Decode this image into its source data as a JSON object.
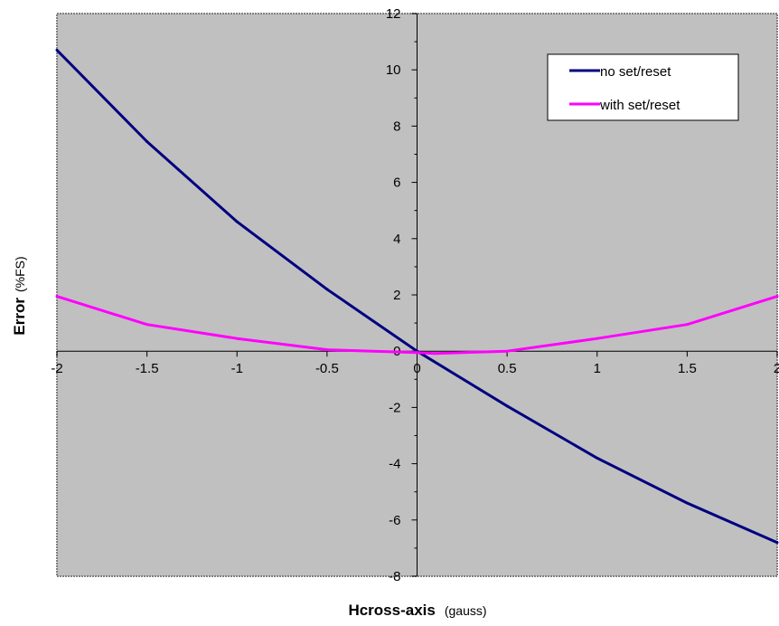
{
  "chart_data": {
    "type": "line",
    "x": [
      -2,
      -1.5,
      -1,
      -0.5,
      0,
      0.5,
      1,
      1.5,
      2
    ],
    "series": [
      {
        "name": "no set/reset",
        "color": "#000080",
        "x": [
          -2,
          -1.5,
          -1,
          -0.5,
          0,
          0.5,
          1,
          1.5,
          2
        ],
        "values": [
          10.7,
          7.45,
          4.6,
          2.2,
          0.0,
          -1.95,
          -3.8,
          -5.4,
          -6.8
        ]
      },
      {
        "name": "with set/reset",
        "color": "#ff00ff",
        "x": [
          -2,
          -1.5,
          -1,
          -0.5,
          0,
          0.1,
          0.5,
          1,
          1.5,
          2
        ],
        "values": [
          1.95,
          0.95,
          0.45,
          0.05,
          -0.05,
          -0.08,
          0.0,
          0.45,
          0.95,
          1.95
        ]
      }
    ],
    "xlim": [
      -2,
      2
    ],
    "ylim": [
      -8,
      12
    ],
    "xticks": [
      -2,
      -1.5,
      -1,
      -0.5,
      0,
      0.5,
      1,
      1.5,
      2
    ],
    "xtick_labels": [
      "-2",
      "-1.5",
      "-1",
      "-0.5",
      "0",
      "0.5",
      "1",
      "1.5",
      "2"
    ],
    "yticks": [
      -8,
      -6,
      -4,
      -2,
      0,
      2,
      4,
      6,
      8,
      10,
      12
    ],
    "ytick_labels": [
      "-8",
      "-6",
      "-4",
      "-2",
      "0",
      "2",
      "4",
      "6",
      "8",
      "10",
      "12"
    ],
    "xlabel": "Hcross-axis",
    "xlabel_unit": "(gauss)",
    "ylabel": "Error",
    "ylabel_unit": "(%FS)",
    "grid": false,
    "legend_position": "top-right",
    "plot_background": "#c0c0c0"
  }
}
